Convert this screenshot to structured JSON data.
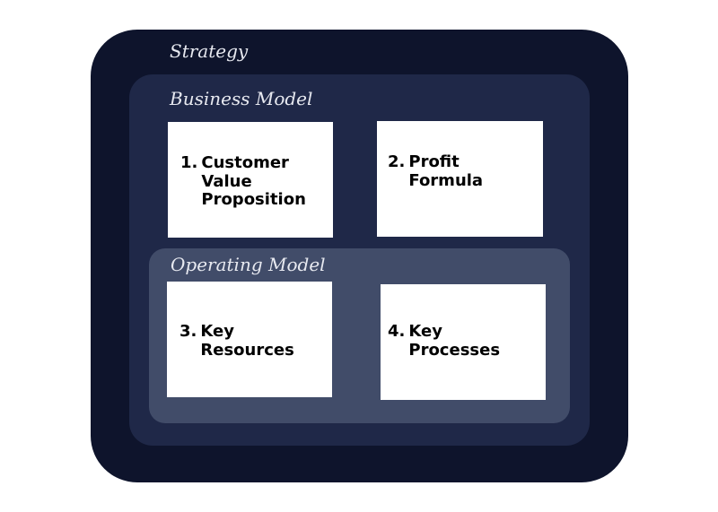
{
  "layers": {
    "strategy": "Strategy",
    "business_model": "Business Model",
    "operating_model": "Operating Model"
  },
  "boxes": [
    {
      "number": "1.",
      "label": "Customer Value Proposition"
    },
    {
      "number": "2.",
      "label": "Profit Formula"
    },
    {
      "number": "3.",
      "label": "Key Resources"
    },
    {
      "number": "4.",
      "label": "Key Processes"
    }
  ],
  "colors": {
    "strategy": "#0e142c",
    "business_model": "#1f2848",
    "operating_model": "#414c69",
    "box": "#ffffff"
  }
}
